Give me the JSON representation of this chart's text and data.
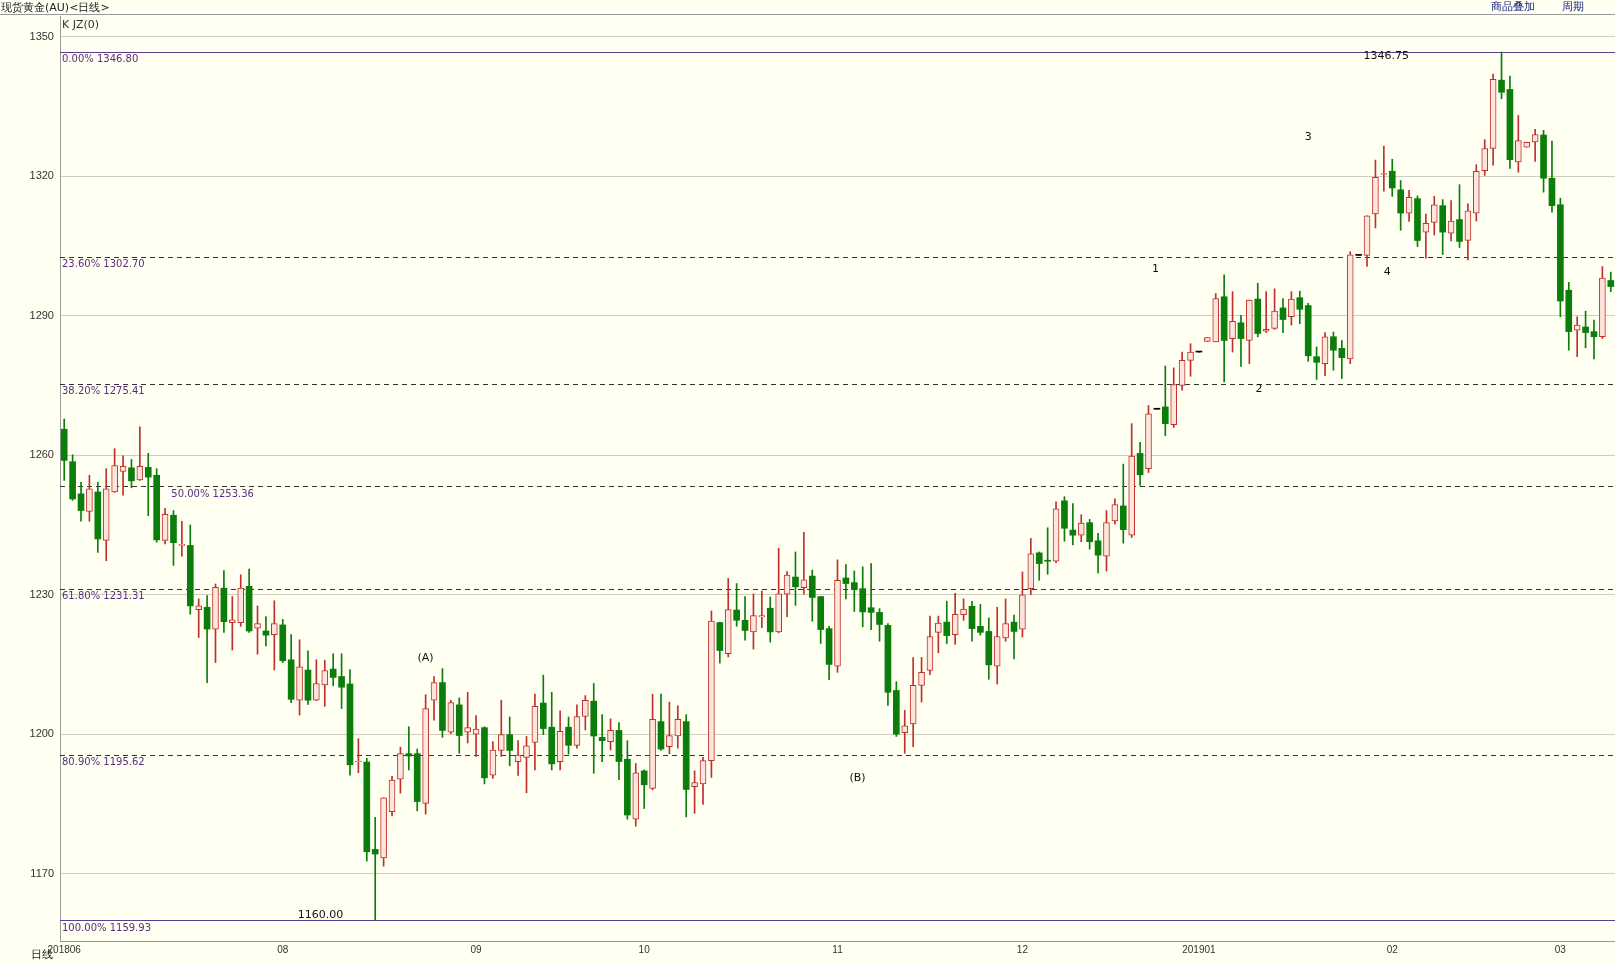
{
  "chart_data": {
    "type": "candlestick",
    "title": "现货黄金(AU)<日线>",
    "subtitle": "K JZ(0)",
    "xlabel": "日线",
    "categories": [
      "201806",
      null,
      null,
      null,
      null,
      null,
      null,
      null,
      null,
      null,
      null,
      null,
      null,
      null,
      null,
      null,
      null,
      null,
      null,
      null,
      null,
      null,
      null,
      null,
      null,
      null,
      "08",
      null,
      null,
      null,
      null,
      null,
      null,
      null,
      null,
      null,
      null,
      null,
      null,
      null,
      null,
      null,
      null,
      null,
      null,
      null,
      null,
      null,
      null,
      "09",
      null,
      null,
      null,
      null,
      null,
      null,
      null,
      null,
      null,
      null,
      null,
      null,
      null,
      null,
      null,
      null,
      null,
      null,
      null,
      "10",
      null,
      null,
      null,
      null,
      null,
      null,
      null,
      null,
      null,
      null,
      null,
      null,
      null,
      null,
      null,
      null,
      null,
      null,
      null,
      null,
      null,
      null,
      "11",
      null,
      null,
      null,
      null,
      null,
      null,
      null,
      null,
      null,
      null,
      null,
      null,
      null,
      null,
      null,
      null,
      null,
      null,
      null,
      null,
      null,
      "12",
      null,
      null,
      null,
      null,
      null,
      null,
      null,
      null,
      null,
      null,
      null,
      null,
      null,
      null,
      null,
      null,
      null,
      null,
      null,
      null,
      "201901",
      null,
      null,
      null,
      null,
      null,
      null,
      null,
      null,
      null,
      null,
      null,
      null,
      null,
      null,
      null,
      null,
      null,
      null,
      null,
      null,
      null,
      null,
      "02",
      null,
      null,
      null,
      null,
      null,
      null,
      null,
      null,
      null,
      null,
      null,
      null,
      null,
      null,
      null,
      null,
      null,
      null,
      null,
      "03",
      null,
      null,
      null,
      null,
      null,
      null
    ],
    "ohlc": [
      [
        1265.6,
        1267.8,
        1254.6,
        1258.9
      ],
      [
        1258.6,
        1260.1,
        1250.3,
        1250.6
      ],
      [
        1251.7,
        1254.2,
        1245.8,
        1248.1
      ],
      [
        1247.9,
        1255.7,
        1245.8,
        1252.8
      ],
      [
        1252.1,
        1254.2,
        1239.1,
        1242.0
      ],
      [
        1241.7,
        1257.1,
        1237.3,
        1252.8
      ],
      [
        1252.1,
        1261.4,
        1252.0,
        1257.8
      ],
      [
        1256.5,
        1259.9,
        1251.4,
        1257.6
      ],
      [
        1257.3,
        1259.1,
        1253.0,
        1254.5
      ],
      [
        1254.7,
        1266.1,
        1254.6,
        1257.6
      ],
      [
        1257.4,
        1260.4,
        1247.0,
        1255.3
      ],
      [
        1255.7,
        1257.1,
        1241.3,
        1241.8
      ],
      [
        1241.7,
        1248.6,
        1240.9,
        1247.3
      ],
      [
        1247.1,
        1248.1,
        1236.3,
        1241.2
      ],
      [
        1240.6,
        1245.8,
        1238.3,
        1240.8
      ],
      [
        1240.6,
        1245.0,
        1225.8,
        1227.6
      ],
      [
        1226.8,
        1229.1,
        1220.8,
        1227.6
      ],
      [
        1227.3,
        1229.8,
        1211.1,
        1222.6
      ],
      [
        1222.6,
        1232.3,
        1215.4,
        1231.6
      ],
      [
        1231.4,
        1235.2,
        1221.9,
        1224.2
      ],
      [
        1224.0,
        1229.6,
        1218.1,
        1224.6
      ],
      [
        1224.0,
        1234.3,
        1223.2,
        1231.4
      ],
      [
        1231.8,
        1235.5,
        1221.9,
        1222.2
      ],
      [
        1222.8,
        1227.6,
        1217.2,
        1223.8
      ],
      [
        1222.2,
        1225.3,
        1219.0,
        1221.3
      ],
      [
        1221.4,
        1228.7,
        1213.8,
        1223.8
      ],
      [
        1223.5,
        1224.7,
        1215.4,
        1215.8
      ],
      [
        1216.0,
        1221.4,
        1206.8,
        1207.5
      ],
      [
        1207.3,
        1220.3,
        1204.1,
        1214.5
      ],
      [
        1213.8,
        1217.9,
        1206.4,
        1207.3
      ],
      [
        1207.3,
        1216.0,
        1207.2,
        1210.9
      ],
      [
        1210.6,
        1215.9,
        1206.0,
        1213.7
      ],
      [
        1214.0,
        1217.3,
        1210.4,
        1212.2
      ],
      [
        1212.4,
        1217.3,
        1205.5,
        1210.1
      ],
      [
        1210.8,
        1213.9,
        1191.2,
        1193.4
      ],
      [
        1194.0,
        1199.0,
        1191.7,
        1194.1
      ],
      [
        1194.0,
        1194.8,
        1172.7,
        1174.7
      ],
      [
        1175.2,
        1182.1,
        1160.0,
        1174.2
      ],
      [
        1173.4,
        1186.3,
        1171.6,
        1186.3
      ],
      [
        1183.3,
        1190.9,
        1182.4,
        1190.1
      ],
      [
        1190.3,
        1197.2,
        1187.3,
        1195.8
      ],
      [
        1195.8,
        1201.6,
        1192.3,
        1195.3
      ],
      [
        1195.8,
        1196.8,
        1183.5,
        1185.5
      ],
      [
        1185.1,
        1208.5,
        1182.8,
        1205.5
      ],
      [
        1207.3,
        1212.4,
        1203.0,
        1211.1
      ],
      [
        1211.1,
        1214.1,
        1199.3,
        1200.8
      ],
      [
        1200.4,
        1207.3,
        1200.1,
        1206.8
      ],
      [
        1206.3,
        1207.8,
        1195.9,
        1199.7
      ],
      [
        1200.4,
        1209.0,
        1198.1,
        1201.4
      ],
      [
        1200.0,
        1204.0,
        1195.2,
        1201.1
      ],
      [
        1201.4,
        1201.6,
        1189.3,
        1190.6
      ],
      [
        1191.2,
        1198.4,
        1190.5,
        1196.6
      ],
      [
        1196.5,
        1207.3,
        1195.2,
        1199.9
      ],
      [
        1199.9,
        1203.7,
        1193.2,
        1196.5
      ],
      [
        1194.1,
        1198.6,
        1191.1,
        1195.5
      ],
      [
        1195.0,
        1199.5,
        1187.4,
        1197.5
      ],
      [
        1198.2,
        1208.6,
        1192.3,
        1206.0
      ],
      [
        1206.7,
        1212.7,
        1199.9,
        1201.2
      ],
      [
        1201.5,
        1209.0,
        1192.3,
        1193.6
      ],
      [
        1194.1,
        1205.0,
        1192.3,
        1200.6
      ],
      [
        1201.5,
        1203.7,
        1195.7,
        1197.6
      ],
      [
        1197.6,
        1206.3,
        1197.0,
        1203.8
      ],
      [
        1203.8,
        1208.3,
        1200.9,
        1207.3
      ],
      [
        1207.1,
        1210.9,
        1191.6,
        1199.6
      ],
      [
        1199.3,
        1204.2,
        1194.1,
        1198.6
      ],
      [
        1198.4,
        1203.3,
        1196.6,
        1200.8
      ],
      [
        1200.8,
        1202.5,
        1190.2,
        1194.1
      ],
      [
        1194.6,
        1198.6,
        1181.7,
        1182.6
      ],
      [
        1181.7,
        1193.7,
        1180.2,
        1191.7
      ],
      [
        1192.1,
        1192.3,
        1184.0,
        1189.1
      ],
      [
        1188.3,
        1208.6,
        1188.0,
        1203.2
      ],
      [
        1202.7,
        1208.6,
        1196.5,
        1196.8
      ],
      [
        1197.3,
        1206.9,
        1195.8,
        1199.7
      ],
      [
        1199.6,
        1206.1,
        1197.0,
        1203.2
      ],
      [
        1202.7,
        1204.2,
        1182.2,
        1188.1
      ],
      [
        1188.7,
        1192.1,
        1183.0,
        1189.6
      ],
      [
        1189.3,
        1195.0,
        1184.9,
        1194.3
      ],
      [
        1194.3,
        1226.5,
        1190.7,
        1224.3
      ],
      [
        1224.0,
        1224.1,
        1215.3,
        1218.0
      ],
      [
        1217.3,
        1233.5,
        1216.6,
        1226.8
      ],
      [
        1226.7,
        1232.4,
        1223.2,
        1224.5
      ],
      [
        1224.5,
        1229.6,
        1220.2,
        1222.3
      ],
      [
        1222.0,
        1230.2,
        1218.3,
        1225.5
      ],
      [
        1225.2,
        1230.8,
        1222.9,
        1225.5
      ],
      [
        1227.1,
        1229.5,
        1219.8,
        1222.0
      ],
      [
        1222.0,
        1240.0,
        1221.8,
        1230.2
      ],
      [
        1230.1,
        1235.0,
        1225.3,
        1234.2
      ],
      [
        1233.8,
        1239.2,
        1227.7,
        1231.7
      ],
      [
        1231.5,
        1243.4,
        1230.1,
        1233.2
      ],
      [
        1234.0,
        1235.3,
        1224.3,
        1229.4
      ],
      [
        1229.6,
        1229.6,
        1219.5,
        1222.5
      ],
      [
        1222.7,
        1223.2,
        1211.7,
        1215.0
      ],
      [
        1214.6,
        1237.5,
        1213.3,
        1233.1
      ],
      [
        1233.6,
        1236.5,
        1229.1,
        1232.4
      ],
      [
        1232.6,
        1235.1,
        1226.4,
        1231.1
      ],
      [
        1231.3,
        1236.0,
        1223.1,
        1226.3
      ],
      [
        1227.2,
        1236.7,
        1222.5,
        1226.2
      ],
      [
        1226.2,
        1227.0,
        1220.0,
        1223.6
      ],
      [
        1223.4,
        1223.8,
        1206.2,
        1209.0
      ],
      [
        1209.4,
        1211.3,
        1199.5,
        1200.0
      ],
      [
        1200.3,
        1205.1,
        1195.9,
        1201.8
      ],
      [
        1202.2,
        1216.5,
        1197.3,
        1210.5
      ],
      [
        1210.5,
        1216.5,
        1206.9,
        1213.3
      ],
      [
        1213.7,
        1225.4,
        1212.8,
        1221.0
      ],
      [
        1221.9,
        1225.4,
        1217.5,
        1223.9
      ],
      [
        1224.1,
        1228.6,
        1219.5,
        1221.2
      ],
      [
        1221.4,
        1230.3,
        1219.3,
        1225.8
      ],
      [
        1225.7,
        1229.1,
        1224.5,
        1226.9
      ],
      [
        1227.5,
        1228.6,
        1220.0,
        1222.7
      ],
      [
        1223.2,
        1227.9,
        1221.3,
        1221.9
      ],
      [
        1222.1,
        1225.0,
        1211.8,
        1214.9
      ],
      [
        1214.6,
        1227.3,
        1210.8,
        1221.0
      ],
      [
        1220.7,
        1229.1,
        1220.0,
        1223.8
      ],
      [
        1224.1,
        1225.6,
        1216.2,
        1222.1
      ],
      [
        1222.6,
        1234.9,
        1220.9,
        1230.0
      ],
      [
        1231.3,
        1242.1,
        1230.0,
        1238.8
      ],
      [
        1239.0,
        1239.2,
        1233.1,
        1236.7
      ],
      [
        1237.4,
        1244.4,
        1234.4,
        1237.2
      ],
      [
        1237.2,
        1250.0,
        1236.9,
        1248.5
      ],
      [
        1250.2,
        1251.1,
        1241.5,
        1244.3
      ],
      [
        1243.9,
        1249.6,
        1240.7,
        1242.8
      ],
      [
        1242.8,
        1247.2,
        1241.4,
        1245.4
      ],
      [
        1245.5,
        1246.2,
        1239.8,
        1241.4
      ],
      [
        1241.6,
        1243.2,
        1234.7,
        1238.5
      ],
      [
        1238.3,
        1248.1,
        1235.1,
        1245.5
      ],
      [
        1245.9,
        1250.6,
        1245.2,
        1249.4
      ],
      [
        1249.1,
        1258.1,
        1241.1,
        1244.0
      ],
      [
        1242.8,
        1266.8,
        1242.3,
        1259.8
      ],
      [
        1260.4,
        1262.8,
        1253.5,
        1255.8
      ],
      [
        1257.1,
        1270.7,
        1256.3,
        1268.9
      ],
      [
        1269.9,
        1269.9,
        1269.9,
        1269.9
      ],
      [
        1270.4,
        1279.2,
        1264.2,
        1266.8
      ],
      [
        1266.6,
        1278.8,
        1266.0,
        1275.2
      ],
      [
        1275.0,
        1282.2,
        1274.0,
        1280.4
      ],
      [
        1280.4,
        1284.0,
        1277.0,
        1282.2
      ],
      [
        1282.2,
        1282.2,
        1282.2,
        1282.2
      ],
      [
        1284.5,
        1285.3,
        1284.5,
        1285.3
      ],
      [
        1284.4,
        1294.8,
        1284.4,
        1293.7
      ],
      [
        1294.1,
        1298.8,
        1275.8,
        1284.7
      ],
      [
        1285.1,
        1295.2,
        1282.2,
        1288.8
      ],
      [
        1288.5,
        1290.1,
        1279.1,
        1285.1
      ],
      [
        1284.7,
        1293.4,
        1279.7,
        1293.4
      ],
      [
        1293.6,
        1297.0,
        1285.5,
        1286.2
      ],
      [
        1286.7,
        1295.2,
        1286.4,
        1287.1
      ],
      [
        1287.3,
        1295.8,
        1287.1,
        1291.0
      ],
      [
        1291.7,
        1293.7,
        1286.4,
        1289.2
      ],
      [
        1289.8,
        1295.2,
        1288.0,
        1293.6
      ],
      [
        1293.9,
        1295.3,
        1288.3,
        1291.4
      ],
      [
        1292.2,
        1292.7,
        1280.2,
        1281.4
      ],
      [
        1281.2,
        1283.3,
        1276.3,
        1280.0
      ],
      [
        1279.7,
        1286.4,
        1277.1,
        1285.5
      ],
      [
        1285.5,
        1286.5,
        1278.3,
        1282.6
      ],
      [
        1283.0,
        1284.7,
        1276.5,
        1281.0
      ],
      [
        1280.7,
        1303.8,
        1279.7,
        1303.1
      ],
      [
        1303.0,
        1303.0,
        1303.0,
        1303.0
      ],
      [
        1303.0,
        1311.5,
        1300.6,
        1311.5
      ],
      [
        1311.9,
        1323.5,
        1308.9,
        1319.8
      ],
      [
        1320.4,
        1326.5,
        1316.8,
        1320.5
      ],
      [
        1321.1,
        1323.7,
        1315.7,
        1317.5
      ],
      [
        1317.1,
        1319.1,
        1308.4,
        1312.1
      ],
      [
        1312.1,
        1317.0,
        1310.3,
        1315.5
      ],
      [
        1315.2,
        1315.8,
        1304.9,
        1306.2
      ],
      [
        1308.0,
        1311.9,
        1302.4,
        1309.9
      ],
      [
        1310.1,
        1315.7,
        1307.4,
        1313.9
      ],
      [
        1313.7,
        1315.0,
        1303.2,
        1308.0
      ],
      [
        1307.8,
        1314.8,
        1306.1,
        1310.4
      ],
      [
        1310.7,
        1318.2,
        1304.7,
        1306.0
      ],
      [
        1306.2,
        1314.1,
        1302.0,
        1312.6
      ],
      [
        1312.1,
        1322.5,
        1310.4,
        1321.1
      ],
      [
        1321.2,
        1327.9,
        1320.2,
        1326.0
      ],
      [
        1326.0,
        1342.0,
        1322.4,
        1340.9
      ],
      [
        1340.7,
        1346.75,
        1336.7,
        1338.1
      ],
      [
        1338.7,
        1341.6,
        1321.7,
        1323.6
      ],
      [
        1323.1,
        1333.1,
        1320.9,
        1327.7
      ],
      [
        1326.3,
        1327.3,
        1326.3,
        1327.3
      ],
      [
        1327.4,
        1330.1,
        1323.2,
        1329.0
      ],
      [
        1328.9,
        1329.9,
        1316.6,
        1319.6
      ],
      [
        1319.6,
        1327.6,
        1312.3,
        1313.7
      ],
      [
        1313.9,
        1315.3,
        1289.8,
        1293.2
      ],
      [
        1295.5,
        1297.2,
        1282.6,
        1286.6
      ],
      [
        1286.9,
        1289.8,
        1281.2,
        1288.0
      ],
      [
        1287.6,
        1291.0,
        1283.1,
        1286.4
      ],
      [
        1286.6,
        1289.1,
        1280.7,
        1285.5
      ],
      [
        1285.5,
        1300.6,
        1285.1,
        1298.1
      ],
      [
        1297.6,
        1299.4,
        1295.2,
        1296.3
      ]
    ],
    "ylim": [
      1155.5,
      1354.5
    ],
    "yticks": [
      1170,
      1200,
      1230,
      1260,
      1290,
      1320,
      1350
    ],
    "grid": "y",
    "legend": false,
    "ref_lines": [
      {
        "axis": "y",
        "value": 1346.8,
        "label": "0.00% 1346.80",
        "color": "#5b3f8f",
        "line_style": "solid"
      },
      {
        "axis": "y",
        "value": 1302.7,
        "label": "23.60% 1302.70",
        "color": "#333333",
        "line_style": "dashed"
      },
      {
        "axis": "y",
        "value": 1275.41,
        "label": "38.20% 1275.41",
        "color": "#333333",
        "line_style": "dashed"
      },
      {
        "axis": "y",
        "value": 1253.36,
        "label": "50.00% 1253.36",
        "color": "#333333",
        "line_style": "dashed"
      },
      {
        "axis": "y",
        "value": 1231.31,
        "label": "61.80% 1231.31",
        "color": "#333333",
        "line_style": "dashed"
      },
      {
        "axis": "y",
        "value": 1195.62,
        "label": "80.90% 1195.62",
        "color": "#333333",
        "line_style": "dashed"
      },
      {
        "axis": "y",
        "value": 1159.93,
        "label": "100.00% 1159.93",
        "color": "#5b3f8f",
        "line_style": "solid"
      }
    ],
    "annotations": [
      "(A)",
      "(B)",
      "1",
      "2",
      "3",
      "4",
      "1160.00",
      "1346.75",
      "商品叠加",
      "周期"
    ]
  }
}
